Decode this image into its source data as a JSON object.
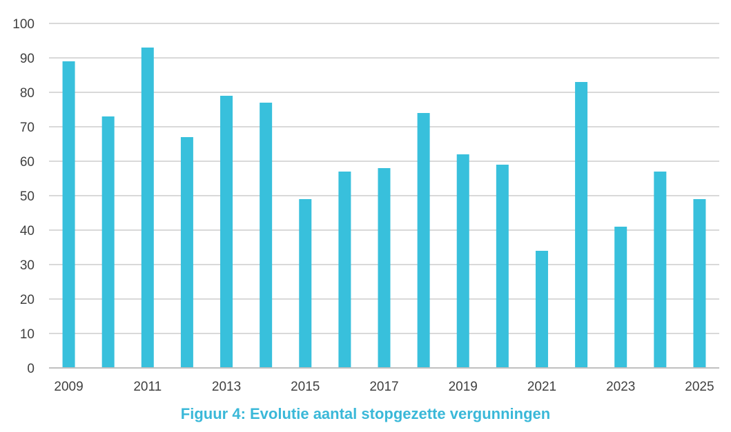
{
  "chart_data": {
    "type": "bar",
    "categories": [
      "2009",
      "2010",
      "2011",
      "2012",
      "2013",
      "2014",
      "2015",
      "2016",
      "2017",
      "2018",
      "2019",
      "2020",
      "2021",
      "2022",
      "2023",
      "2024",
      "2025"
    ],
    "values": [
      89,
      73,
      93,
      67,
      79,
      77,
      49,
      57,
      58,
      74,
      62,
      59,
      34,
      83,
      41,
      57,
      49
    ],
    "x_tick_labels": [
      "2009",
      "2011",
      "2013",
      "2015",
      "2017",
      "2019",
      "2021",
      "2023",
      "2025"
    ],
    "y_tick_labels": [
      "0",
      "10",
      "20",
      "30",
      "40",
      "50",
      "60",
      "70",
      "80",
      "90",
      "100"
    ],
    "ylim": [
      0,
      100
    ],
    "y_step": 10,
    "grid": true,
    "title": "Figuur 4: Evolutie aantal stopgezette vergunningen",
    "xlabel": "",
    "ylabel": "",
    "colors": {
      "bar": "#38c0dc",
      "grid": "#d9d9d9",
      "axis": "#bfbfbf",
      "caption": "#3ab8d8"
    }
  }
}
